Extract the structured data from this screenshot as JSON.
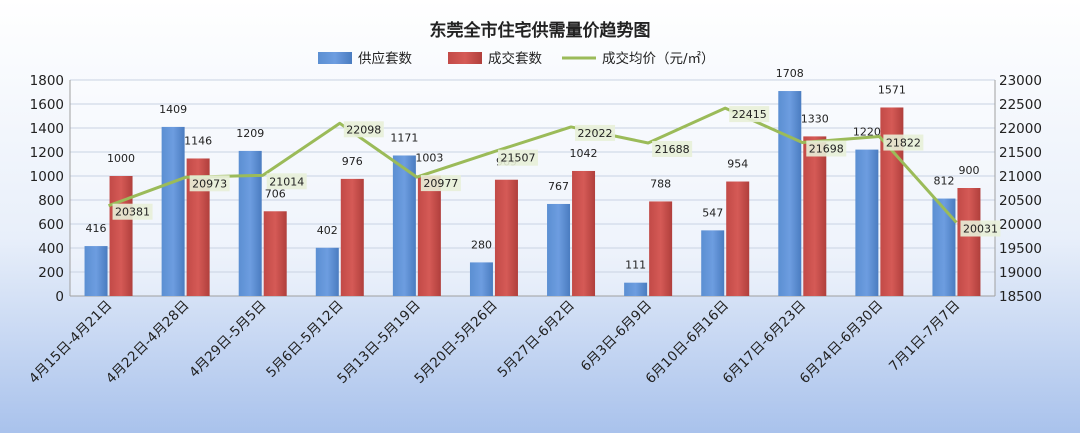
{
  "chart_data": {
    "type": "bar",
    "title": "东莞全市住宅供需量价趋势图",
    "categories": [
      "4月15日-4月21日",
      "4月22日-4月28日",
      "4月29日-5月5日",
      "5月6日-5月12日",
      "5月13日-5月19日",
      "5月20日-5月26日",
      "5月27日-6月2日",
      "6月3日-6月9日",
      "6月10日-6月16日",
      "6月17日-6月23日",
      "6月24日-6月30日",
      "7月1日-7月7日"
    ],
    "series": [
      {
        "name": "供应套数",
        "kind": "bar",
        "axis": "left",
        "color": "#4f81bd",
        "values": [
          416,
          1409,
          1209,
          402,
          1171,
          280,
          767,
          111,
          547,
          1708,
          1220,
          812
        ]
      },
      {
        "name": "成交套数",
        "kind": "bar",
        "axis": "left",
        "color": "#c0504d",
        "values": [
          1000,
          1146,
          706,
          976,
          1003,
          969,
          1042,
          788,
          954,
          1330,
          1571,
          900
        ]
      },
      {
        "name": "成交均价（元/㎡）",
        "kind": "line",
        "axis": "right",
        "color": "#9bbb59",
        "values": [
          20381,
          20973,
          21014,
          22098,
          20977,
          21507,
          22022,
          21688,
          22415,
          21698,
          21822,
          20031
        ]
      }
    ],
    "y_left": {
      "min": 0,
      "max": 1800,
      "ticks": [
        "0",
        "200",
        "400",
        "600",
        "800",
        "1000",
        "1200",
        "1400",
        "1600",
        "1800"
      ]
    },
    "y_right": {
      "min": 18500,
      "max": 23000,
      "ticks": [
        "18500",
        "19000",
        "19500",
        "20000",
        "20500",
        "21000",
        "21500",
        "22000",
        "22500",
        "23000"
      ]
    },
    "legend_position": "top-center",
    "grid": true
  }
}
